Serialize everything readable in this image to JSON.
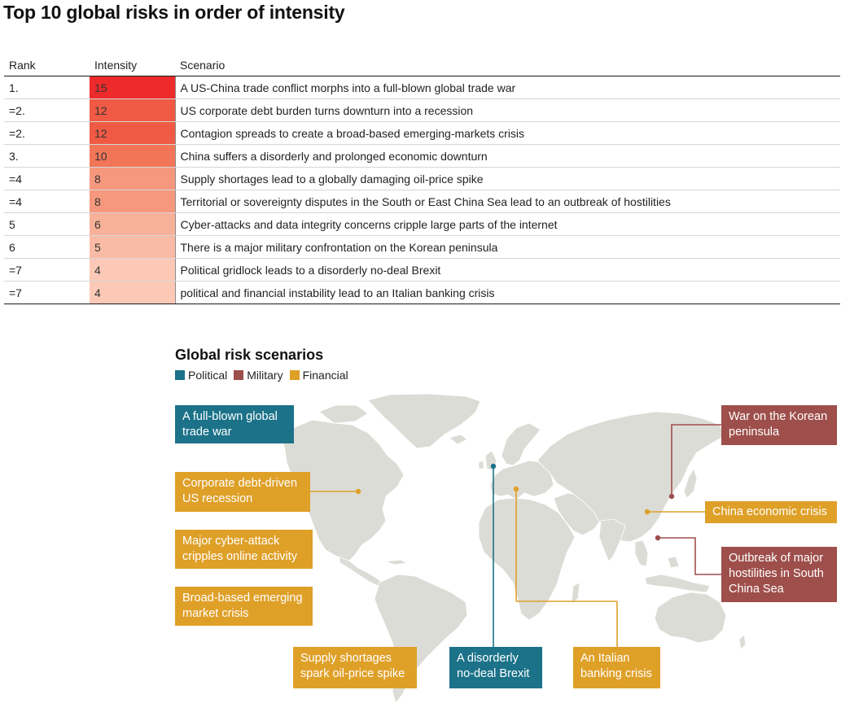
{
  "page": {
    "title": "Top 10 global risks in order of intensity"
  },
  "table": {
    "headers": [
      "Rank",
      "Intensity",
      "Scenario"
    ],
    "rows": [
      {
        "rank": "1.",
        "intensity": "15",
        "scenario": "A US-China trade conflict morphs into a full-blown global trade war",
        "color": "#ee2a2b"
      },
      {
        "rank": "=2.",
        "intensity": "12",
        "scenario": "US corporate debt burden turns downturn into a recession",
        "color": "#f05a44"
      },
      {
        "rank": "=2.",
        "intensity": "12",
        "scenario": "Contagion spreads to create a broad-based emerging-markets crisis",
        "color": "#f05a44"
      },
      {
        "rank": "3.",
        "intensity": "10",
        "scenario": "China suffers a disorderly and prolonged economic downturn",
        "color": "#f27558"
      },
      {
        "rank": "=4",
        "intensity": "8",
        "scenario": "Supply shortages lead to a globally damaging oil-price spike",
        "color": "#f5987d"
      },
      {
        "rank": "=4",
        "intensity": "8",
        "scenario": "Territorial or sovereignty disputes in the South or East China Sea lead to an outbreak of hostilities",
        "color": "#f5987d"
      },
      {
        "rank": "5",
        "intensity": "6",
        "scenario": "Cyber-attacks and data integrity concerns cripple large parts of the internet",
        "color": "#f8b199"
      },
      {
        "rank": "6",
        "intensity": "5",
        "scenario": "There is a major military confrontation on the Korean peninsula",
        "color": "#f9bba5"
      },
      {
        "rank": "=7",
        "intensity": "4",
        "scenario": "Political gridlock leads to a disorderly no-deal Brexit",
        "color": "#fbc9b6"
      },
      {
        "rank": "=7",
        "intensity": "4",
        "scenario": "political and financial instability lead to an Italian banking crisis",
        "color": "#fbc9b6"
      }
    ]
  },
  "chart_data": [
    {
      "type": "table",
      "title": "Top 10 global risks in order of intensity",
      "columns": [
        "Rank",
        "Intensity",
        "Scenario"
      ],
      "categories": [
        "1.",
        "=2.",
        "=2.",
        "3.",
        "=4",
        "=4",
        "5",
        "6",
        "=7",
        "=7"
      ],
      "values": [
        15,
        12,
        12,
        10,
        8,
        8,
        6,
        5,
        4,
        4
      ]
    }
  ],
  "map": {
    "title": "Global risk scenarios",
    "legend": [
      {
        "label": "Political",
        "color": "#1b7289"
      },
      {
        "label": "Military",
        "color": "#9e4f4b"
      },
      {
        "label": "Financial",
        "color": "#dfa028"
      }
    ],
    "land_color": "#dcdcd6",
    "labels": {
      "trade_war": {
        "text_lines": [
          "A full-blown global",
          "trade war"
        ],
        "category": "Political"
      },
      "us_recession": {
        "text_lines": [
          "Corporate debt-driven",
          "US recession"
        ],
        "category": "Financial"
      },
      "cyber_attack": {
        "text_lines": [
          "Major cyber-attack",
          "cripples online activity"
        ],
        "category": "Financial"
      },
      "emerging_market": {
        "text_lines": [
          "Broad-based emerging",
          "market crisis"
        ],
        "category": "Financial"
      },
      "oil_price": {
        "text_lines": [
          "Supply shortages",
          "spark oil-price spike"
        ],
        "category": "Financial"
      },
      "brexit": {
        "text_lines": [
          "A disorderly",
          "no-deal Brexit"
        ],
        "category": "Political"
      },
      "italian_banking": {
        "text_lines": [
          "An Italian",
          "banking crisis"
        ],
        "category": "Financial"
      },
      "korean_war": {
        "text_lines": [
          "War on the Korean",
          "peninsula"
        ],
        "category": "Military"
      },
      "china_economic": {
        "text_lines": [
          "China economic crisis"
        ],
        "category": "Financial"
      },
      "south_china_sea": {
        "text_lines": [
          "Outbreak of major",
          "hostilities in South",
          "China Sea"
        ],
        "category": "Military"
      }
    }
  }
}
